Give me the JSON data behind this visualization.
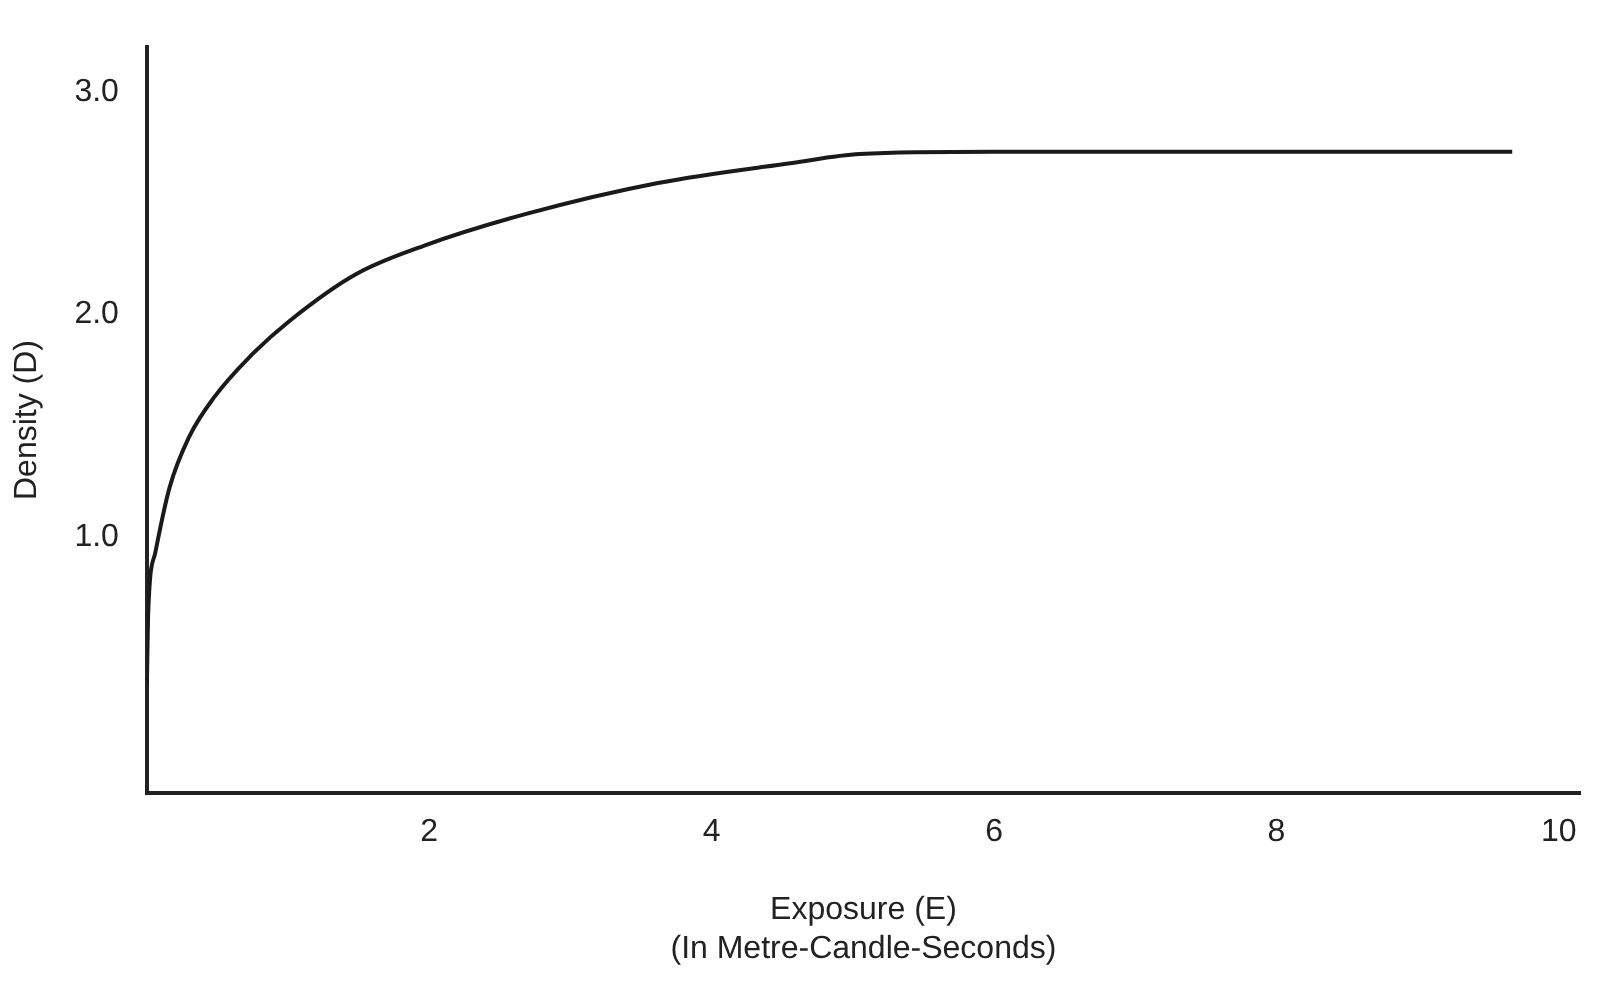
{
  "chart_data": {
    "type": "line",
    "xlabel": "Exposure (E)\n(In Metre-Candle-Seconds)",
    "ylabel": "Density (D)",
    "x": [
      0,
      0.01,
      0.06,
      0.16,
      0.3,
      0.48,
      0.73,
      1.01,
      1.48,
      1.97,
      2.68,
      3.62,
      4.57,
      5.05,
      6.0,
      6.95,
      7.9,
      8.85,
      9.67
    ],
    "series": [
      {
        "color": "#1a1a1a",
        "values": [
          0.34,
          0.67,
          0.93,
          1.22,
          1.45,
          1.63,
          1.81,
          1.97,
          2.18,
          2.31,
          2.45,
          2.59,
          2.68,
          2.72,
          2.73,
          2.73,
          2.73,
          2.73,
          2.73
        ]
      }
    ],
    "xlim": [
      0,
      10.15
    ],
    "xticks": [
      2,
      4,
      6,
      8,
      10
    ],
    "ylim": [
      -0.15,
      3.2
    ],
    "yticks": [
      {
        "value": 1,
        "label": "1.0"
      },
      {
        "value": 2,
        "label": "2.0"
      },
      {
        "value": 3,
        "label": "3.0"
      }
    ],
    "grid": false,
    "legend": false,
    "marker": "none",
    "line_style": "solid"
  }
}
